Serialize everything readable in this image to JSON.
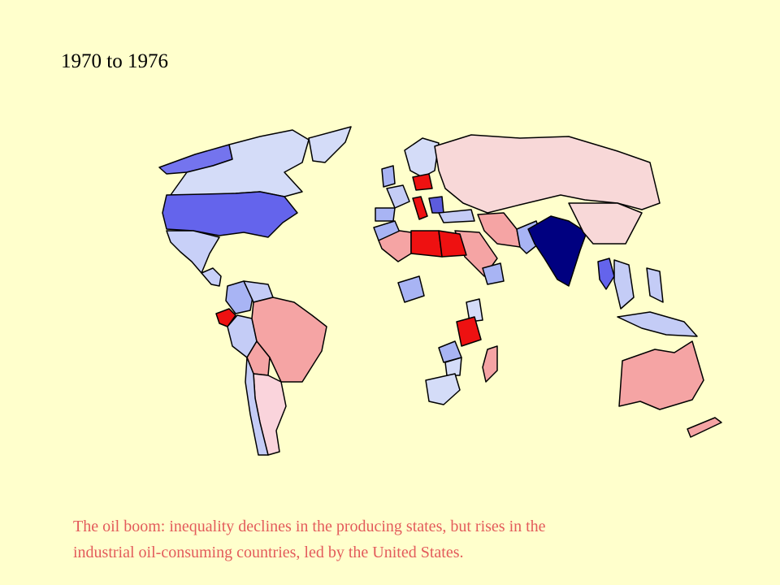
{
  "title": "1970 to 1976",
  "caption": [
    "The oil boom: inequality declines in the producing states, but rises in the",
    "industrial oil-consuming countries, led by the United States."
  ]
}
